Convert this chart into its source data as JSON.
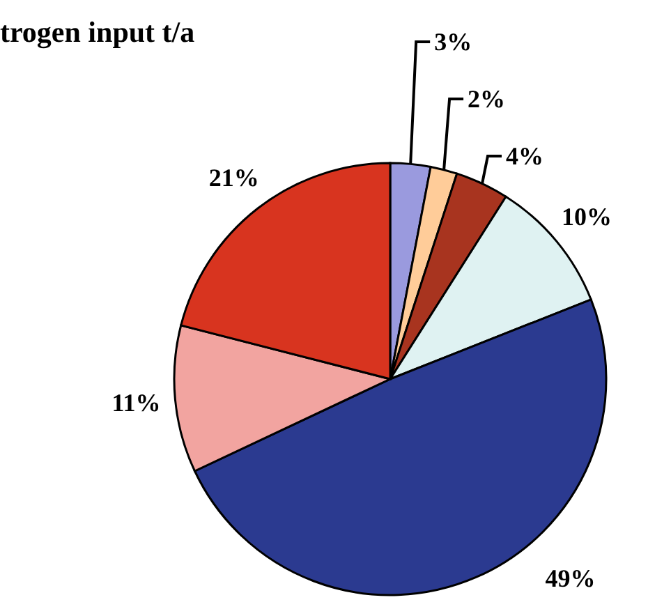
{
  "chart_data": {
    "type": "pie",
    "title": "trogen input t/a",
    "categories": [
      null,
      null,
      null,
      null,
      null,
      null,
      null
    ],
    "values": [
      3,
      2,
      4,
      10,
      49,
      11,
      21
    ],
    "colors": [
      "#9a9ade",
      "#ffcc99",
      "#a8341f",
      "#dff2f2",
      "#2b3a90",
      "#f2a4a0",
      "#d8341f"
    ],
    "value_labels": [
      "3%",
      "2%",
      "4%",
      "10%",
      "49%",
      "11%",
      "21%"
    ]
  }
}
